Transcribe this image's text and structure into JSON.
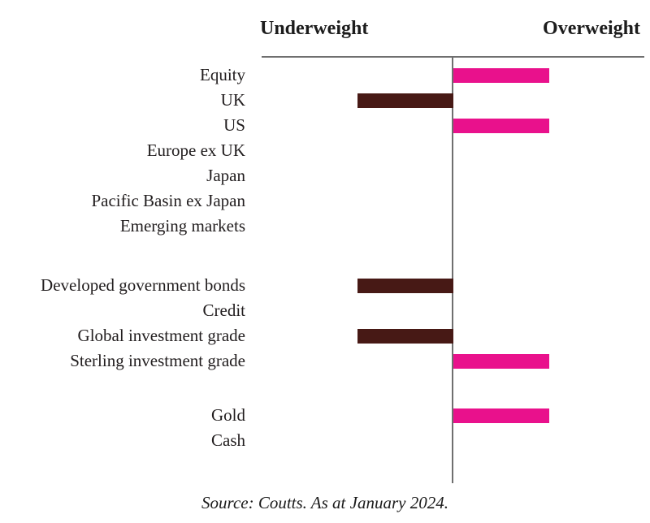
{
  "chart_data": {
    "type": "bar",
    "subtype": "horizontal-diverging",
    "axis": {
      "left_label": "Underweight",
      "right_label": "Overweight",
      "xlim": [
        -1,
        1
      ],
      "baseline": 0,
      "grid": false
    },
    "colors": {
      "overweight_bar": "#e9118c",
      "underweight_bar": "#471915",
      "axis_line": "#6f6f6f",
      "text": "#211d1e"
    },
    "groups": [
      {
        "name": "equities",
        "rows": [
          {
            "label": "Equity",
            "value": 0.5
          },
          {
            "label": "UK",
            "value": -0.5
          },
          {
            "label": "US",
            "value": 0.5
          },
          {
            "label": "Europe ex UK",
            "value": 0
          },
          {
            "label": "Japan",
            "value": 0
          },
          {
            "label": "Pacific Basin ex Japan",
            "value": 0
          },
          {
            "label": "Emerging markets",
            "value": 0
          }
        ]
      },
      {
        "name": "fixed-income",
        "rows": [
          {
            "label": "Developed government bonds",
            "value": -0.5
          },
          {
            "label": "Credit",
            "value": 0
          },
          {
            "label": "Global investment grade",
            "value": -0.5
          },
          {
            "label": "Sterling investment grade",
            "value": 0.5
          }
        ]
      },
      {
        "name": "other-assets",
        "rows": [
          {
            "label": "Gold",
            "value": 0.5
          },
          {
            "label": "Cash",
            "value": 0
          }
        ]
      }
    ],
    "source": "Source: Coutts. As at January 2024."
  }
}
